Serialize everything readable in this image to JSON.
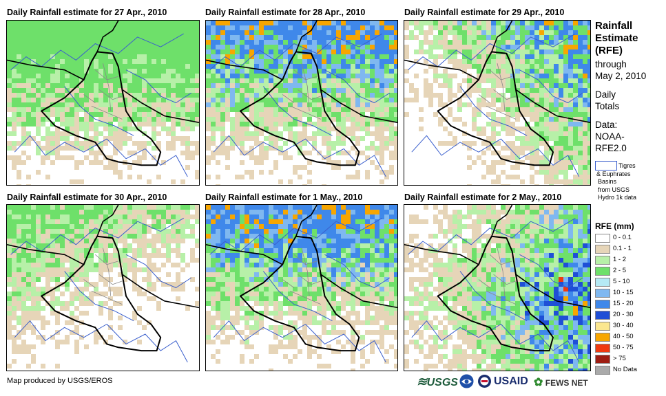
{
  "panels": [
    {
      "title": "Daily Rainfall estimate for 27 Apr., 2010",
      "intensity": 1,
      "focus": "north"
    },
    {
      "title": "Daily Rainfall estimate for 28 Apr., 2010",
      "intensity": 2,
      "focus": "north"
    },
    {
      "title": "Daily Rainfall estimate for 29 Apr., 2010",
      "intensity": 2,
      "focus": "northeast"
    },
    {
      "title": "Daily Rainfall estimate for 30 Apr., 2010",
      "intensity": 1,
      "focus": "west"
    },
    {
      "title": "Daily Rainfall estimate for 1 May., 2010",
      "intensity": 2,
      "focus": "north"
    },
    {
      "title": "Daily Rainfall estimate for 2 May., 2010",
      "intensity": 3,
      "focus": "east"
    }
  ],
  "side": {
    "title_line1": "Rainfall",
    "title_line2": "Estimate",
    "title_line3": "(RFE)",
    "through": "through",
    "through_date": "May 2, 2010",
    "daily": "Daily",
    "totals": "Totals",
    "data_label": "Data:",
    "data_source1": "NOAA-",
    "data_source2": "RFE2.0",
    "basin_line1": "Tigres",
    "basin_line2": "& Euphrates",
    "basin_line3": "Basins",
    "basin_line4": "from USGS",
    "basin_line5": "Hydro 1k data"
  },
  "legend": {
    "title": "RFE (mm)",
    "items": [
      {
        "label": "0 - 0.1",
        "color": "#ffffff"
      },
      {
        "label": "0.1 - 1",
        "color": "#e6d5b8"
      },
      {
        "label": "1 - 2",
        "color": "#b7f0a8"
      },
      {
        "label": "2 - 5",
        "color": "#6ee06a"
      },
      {
        "label": "5 - 10",
        "color": "#b5eaf5"
      },
      {
        "label": "10 - 15",
        "color": "#7fb8f0"
      },
      {
        "label": "15 - 20",
        "color": "#3f88ea"
      },
      {
        "label": "20 - 30",
        "color": "#1f4fd6"
      },
      {
        "label": "30 - 40",
        "color": "#fbe78f"
      },
      {
        "label": "40 - 50",
        "color": "#f7a600"
      },
      {
        "label": "50 - 75",
        "color": "#f03a10"
      },
      {
        "label": "> 75",
        "color": "#9e1d12"
      },
      {
        "label": "No Data",
        "color": "#aaaaaa"
      }
    ]
  },
  "footer": {
    "credit": "Map produced by USGS/EROS",
    "usgs": "USGS",
    "usaid": "USAID",
    "fewsnet": "FEWS NET"
  }
}
